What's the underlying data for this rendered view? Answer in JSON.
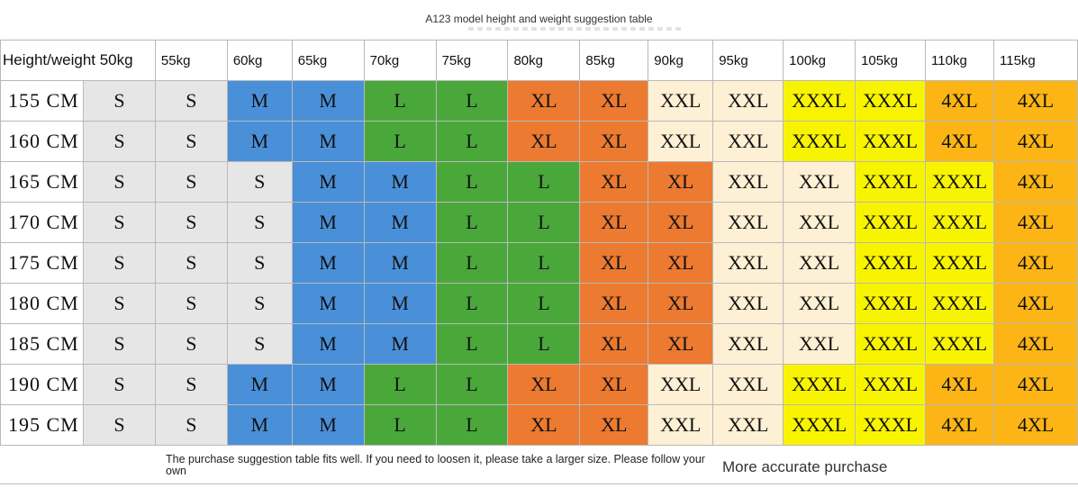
{
  "title": "A123 model height and weight suggestion table",
  "header": [
    "Height/weight 50kg",
    "55kg",
    "60kg",
    "65kg",
    "70kg",
    "75kg",
    "80kg",
    "85kg",
    "90kg",
    "95kg",
    "100kg",
    "105kg",
    "110kg",
    "115kg"
  ],
  "colors": {
    "S": "#e6e6e6",
    "M": "#4a90d9",
    "L": "#4aa83a",
    "XL": "#ec7a30",
    "XXL": "#fdf0d4",
    "XXXL": "#f8f400",
    "4XL": "#fcb514"
  },
  "rows": [
    {
      "height": "155 CM",
      "sizes": [
        "S",
        "S",
        "M",
        "M",
        "L",
        "L",
        "XL",
        "XL",
        "XXL",
        "XXL",
        "XXXL",
        "XXXL",
        "4XL",
        "4XL"
      ]
    },
    {
      "height": "160 CM",
      "sizes": [
        "S",
        "S",
        "M",
        "M",
        "L",
        "L",
        "XL",
        "XL",
        "XXL",
        "XXL",
        "XXXL",
        "XXXL",
        "4XL",
        "4XL"
      ]
    },
    {
      "height": "165 CM",
      "sizes": [
        "S",
        "S",
        "S",
        "M",
        "M",
        "L",
        "L",
        "XL",
        "XL",
        "XXL",
        "XXL",
        "XXXL",
        "XXXL",
        "4XL"
      ]
    },
    {
      "height": "170 CM",
      "sizes": [
        "S",
        "S",
        "S",
        "M",
        "M",
        "L",
        "L",
        "XL",
        "XL",
        "XXL",
        "XXL",
        "XXXL",
        "XXXL",
        "4XL"
      ]
    },
    {
      "height": "175 CM",
      "sizes": [
        "S",
        "S",
        "S",
        "M",
        "M",
        "L",
        "L",
        "XL",
        "XL",
        "XXL",
        "XXL",
        "XXXL",
        "XXXL",
        "4XL"
      ]
    },
    {
      "height": "180 CM",
      "sizes": [
        "S",
        "S",
        "S",
        "M",
        "M",
        "L",
        "L",
        "XL",
        "XL",
        "XXL",
        "XXL",
        "XXXL",
        "XXXL",
        "4XL"
      ]
    },
    {
      "height": "185 CM",
      "sizes": [
        "S",
        "S",
        "S",
        "M",
        "M",
        "L",
        "L",
        "XL",
        "XL",
        "XXL",
        "XXL",
        "XXXL",
        "XXXL",
        "4XL"
      ]
    },
    {
      "height": "190 CM",
      "sizes": [
        "S",
        "S",
        "M",
        "M",
        "L",
        "L",
        "XL",
        "XL",
        "XXL",
        "XXL",
        "XXXL",
        "XXXL",
        "4XL",
        "4XL"
      ]
    },
    {
      "height": "195 CM",
      "sizes": [
        "S",
        "S",
        "M",
        "M",
        "L",
        "L",
        "XL",
        "XL",
        "XXL",
        "XXL",
        "XXXL",
        "XXXL",
        "4XL",
        "4XL"
      ]
    }
  ],
  "footer": {
    "note": "The purchase suggestion table fits well. If you need to loosen it, please take a larger size. Please follow your own",
    "right": "More accurate purchase"
  }
}
